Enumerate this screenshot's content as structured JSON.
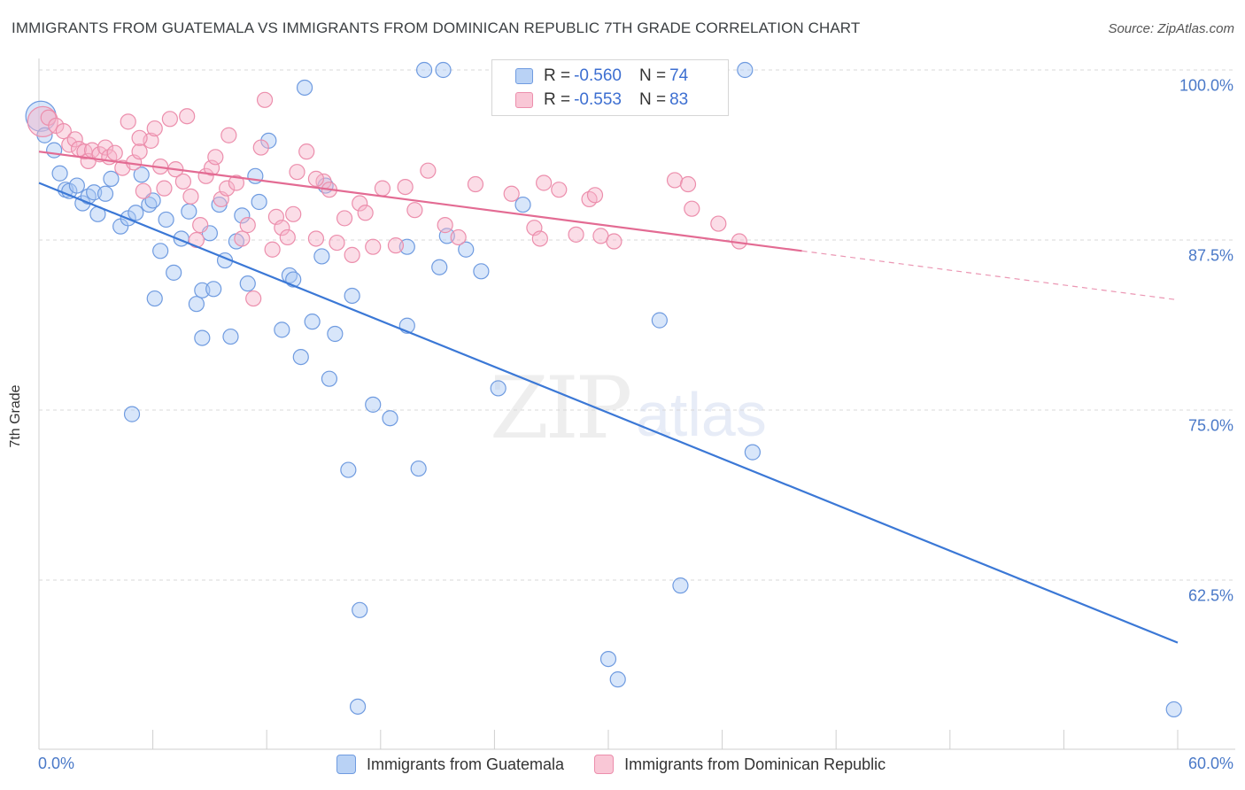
{
  "title": "IMMIGRANTS FROM GUATEMALA VS IMMIGRANTS FROM DOMINICAN REPUBLIC 7TH GRADE CORRELATION CHART",
  "source": "Source: ZipAtlas.com",
  "watermark": {
    "part1": "ZIP",
    "part2": "atlas"
  },
  "legend": {
    "series1": {
      "r_label": "R = ",
      "r_value": "-0.560",
      "n_label": "N = ",
      "n_value": "74"
    },
    "series2": {
      "r_label": "R = ",
      "r_value": "-0.553",
      "n_label": "N = ",
      "n_value": "83"
    }
  },
  "colors": {
    "blue": "#3b78d6",
    "blue_fill": "#a9c8f3",
    "pink": "#e36b93",
    "pink_fill": "#f6b4c9",
    "tick": "#4a79c8"
  },
  "chart_data": {
    "type": "scatter",
    "xlabel": "",
    "ylabel": "7th Grade",
    "xlim": [
      0,
      60
    ],
    "ylim": [
      52,
      102
    ],
    "x_tick_labels": [
      "0.0%",
      "60.0%"
    ],
    "y_ticks": [
      100.0,
      87.5,
      75.0,
      62.5
    ],
    "y_tick_labels": [
      "100.0%",
      "87.5%",
      "75.0%",
      "62.5%"
    ],
    "grid": true,
    "legend_position": "top-center",
    "series": [
      {
        "name": "Immigrants from Guatemala",
        "color": "#3b78d6",
        "trend": {
          "x": [
            0,
            60
          ],
          "y": [
            91.7,
            57.9
          ],
          "dashed_from": null
        },
        "points": [
          [
            0.1,
            96.6,
            2
          ],
          [
            0.3,
            95.2,
            1
          ],
          [
            0.8,
            94.1,
            1
          ],
          [
            1.1,
            92.4,
            1
          ],
          [
            1.4,
            91.2,
            1
          ],
          [
            1.6,
            91.1,
            1
          ],
          [
            2.0,
            91.5,
            1
          ],
          [
            2.3,
            90.2,
            1
          ],
          [
            2.6,
            90.7,
            1
          ],
          [
            2.9,
            91.0,
            1
          ],
          [
            3.1,
            89.4,
            1
          ],
          [
            3.5,
            90.9,
            1
          ],
          [
            3.8,
            92.0,
            1
          ],
          [
            4.3,
            88.5,
            1
          ],
          [
            4.7,
            89.1,
            1
          ],
          [
            5.1,
            89.5,
            1
          ],
          [
            5.4,
            92.3,
            1
          ],
          [
            5.8,
            90.1,
            1
          ],
          [
            6.0,
            90.4,
            1
          ],
          [
            6.4,
            86.7,
            1
          ],
          [
            6.7,
            89.0,
            1
          ],
          [
            7.1,
            85.1,
            1
          ],
          [
            7.5,
            87.6,
            1
          ],
          [
            7.9,
            89.6,
            1
          ],
          [
            8.3,
            82.8,
            1
          ],
          [
            8.6,
            83.8,
            1
          ],
          [
            9.0,
            88.0,
            1
          ],
          [
            9.2,
            83.9,
            1
          ],
          [
            9.5,
            90.1,
            1
          ],
          [
            9.8,
            86.0,
            1
          ],
          [
            10.1,
            80.4,
            1
          ],
          [
            10.4,
            87.4,
            1
          ],
          [
            10.7,
            89.3,
            1
          ],
          [
            11.0,
            84.3,
            1
          ],
          [
            11.4,
            92.2,
            1
          ],
          [
            11.6,
            90.3,
            1
          ],
          [
            12.1,
            94.8,
            1
          ],
          [
            12.8,
            80.9,
            1
          ],
          [
            13.2,
            84.9,
            1
          ],
          [
            13.4,
            84.6,
            1
          ],
          [
            13.8,
            78.9,
            1
          ],
          [
            14.0,
            98.7,
            1
          ],
          [
            14.4,
            81.5,
            1
          ],
          [
            14.9,
            86.3,
            1
          ],
          [
            15.1,
            91.5,
            1
          ],
          [
            15.3,
            77.3,
            1
          ],
          [
            15.6,
            80.6,
            1
          ],
          [
            16.3,
            70.6,
            1
          ],
          [
            16.5,
            83.4,
            1
          ],
          [
            16.9,
            60.3,
            1
          ],
          [
            16.8,
            53.2,
            1
          ],
          [
            17.6,
            75.4,
            1
          ],
          [
            18.5,
            74.4,
            1
          ],
          [
            19.4,
            81.2,
            1
          ],
          [
            19.4,
            87.0,
            1
          ],
          [
            20.0,
            70.7,
            1
          ],
          [
            20.3,
            100.0,
            1
          ],
          [
            21.1,
            85.5,
            1
          ],
          [
            21.5,
            87.8,
            1
          ],
          [
            21.3,
            100.0,
            1
          ],
          [
            22.5,
            86.8,
            1
          ],
          [
            23.3,
            85.2,
            1
          ],
          [
            24.2,
            76.6,
            1
          ],
          [
            25.5,
            90.1,
            1
          ],
          [
            30.0,
            56.7,
            1
          ],
          [
            30.5,
            55.2,
            1
          ],
          [
            32.7,
            81.6,
            1
          ],
          [
            33.8,
            62.1,
            1
          ],
          [
            37.2,
            100.0,
            1
          ],
          [
            37.6,
            71.9,
            1
          ],
          [
            59.8,
            53.0,
            1
          ],
          [
            4.9,
            74.7,
            1
          ],
          [
            8.6,
            80.3,
            1
          ],
          [
            6.1,
            83.2,
            1
          ]
        ]
      },
      {
        "name": "Immigrants from Dominican Republic",
        "color": "#e36b93",
        "trend": {
          "x": [
            0,
            60
          ],
          "y": [
            94.0,
            83.1
          ],
          "dashed_from": 40.2
        },
        "points": [
          [
            0.2,
            96.2,
            2
          ],
          [
            0.5,
            96.5,
            1
          ],
          [
            0.9,
            95.9,
            1
          ],
          [
            1.3,
            95.5,
            1
          ],
          [
            1.6,
            94.5,
            1
          ],
          [
            1.9,
            94.9,
            1
          ],
          [
            2.1,
            94.2,
            1
          ],
          [
            2.4,
            94.0,
            1
          ],
          [
            2.6,
            93.3,
            1
          ],
          [
            2.8,
            94.1,
            1
          ],
          [
            3.2,
            93.8,
            1
          ],
          [
            3.5,
            94.3,
            1
          ],
          [
            3.7,
            93.6,
            1
          ],
          [
            4.0,
            93.9,
            1
          ],
          [
            4.4,
            92.8,
            1
          ],
          [
            4.7,
            96.2,
            1
          ],
          [
            5.0,
            93.2,
            1
          ],
          [
            5.3,
            94.0,
            1
          ],
          [
            5.5,
            91.1,
            1
          ],
          [
            5.9,
            94.8,
            1
          ],
          [
            6.1,
            95.7,
            1
          ],
          [
            6.4,
            92.9,
            1
          ],
          [
            6.6,
            91.3,
            1
          ],
          [
            6.9,
            96.4,
            1
          ],
          [
            7.2,
            92.7,
            1
          ],
          [
            7.6,
            91.8,
            1
          ],
          [
            7.8,
            96.6,
            1
          ],
          [
            8.0,
            90.7,
            1
          ],
          [
            8.3,
            87.5,
            1
          ],
          [
            8.5,
            88.6,
            1
          ],
          [
            8.8,
            92.2,
            1
          ],
          [
            9.1,
            92.8,
            1
          ],
          [
            9.3,
            93.6,
            1
          ],
          [
            9.6,
            90.5,
            1
          ],
          [
            9.9,
            91.3,
            1
          ],
          [
            10.0,
            95.2,
            1
          ],
          [
            10.4,
            91.7,
            1
          ],
          [
            10.7,
            87.6,
            1
          ],
          [
            11.0,
            88.6,
            1
          ],
          [
            11.3,
            83.2,
            1
          ],
          [
            11.7,
            94.3,
            1
          ],
          [
            11.9,
            97.8,
            1
          ],
          [
            12.3,
            86.8,
            1
          ],
          [
            12.5,
            89.2,
            1
          ],
          [
            12.8,
            88.4,
            1
          ],
          [
            13.1,
            87.7,
            1
          ],
          [
            13.4,
            89.4,
            1
          ],
          [
            13.6,
            92.5,
            1
          ],
          [
            14.1,
            94.0,
            1
          ],
          [
            14.6,
            87.6,
            1
          ],
          [
            15.0,
            91.8,
            1
          ],
          [
            15.3,
            91.2,
            1
          ],
          [
            15.7,
            87.3,
            1
          ],
          [
            16.1,
            89.1,
            1
          ],
          [
            16.5,
            86.4,
            1
          ],
          [
            16.9,
            90.2,
            1
          ],
          [
            17.2,
            89.5,
            1
          ],
          [
            17.6,
            87.0,
            1
          ],
          [
            18.1,
            91.3,
            1
          ],
          [
            18.8,
            87.1,
            1
          ],
          [
            19.3,
            91.4,
            1
          ],
          [
            19.8,
            89.7,
            1
          ],
          [
            20.5,
            92.6,
            1
          ],
          [
            21.4,
            88.6,
            1
          ],
          [
            22.1,
            87.7,
            1
          ],
          [
            23.0,
            91.6,
            1
          ],
          [
            24.9,
            90.9,
            1
          ],
          [
            26.1,
            88.4,
            1
          ],
          [
            26.4,
            87.6,
            1
          ],
          [
            26.6,
            91.7,
            1
          ],
          [
            27.4,
            91.2,
            1
          ],
          [
            28.3,
            87.9,
            1
          ],
          [
            29.0,
            90.5,
            1
          ],
          [
            29.3,
            90.8,
            1
          ],
          [
            29.6,
            87.8,
            1
          ],
          [
            30.3,
            87.4,
            1
          ],
          [
            33.5,
            91.9,
            1
          ],
          [
            34.2,
            91.6,
            1
          ],
          [
            34.4,
            89.8,
            1
          ],
          [
            35.8,
            88.7,
            1
          ],
          [
            36.9,
            87.4,
            1
          ],
          [
            5.3,
            95.0,
            1
          ],
          [
            14.6,
            92.0,
            1
          ]
        ]
      }
    ]
  }
}
